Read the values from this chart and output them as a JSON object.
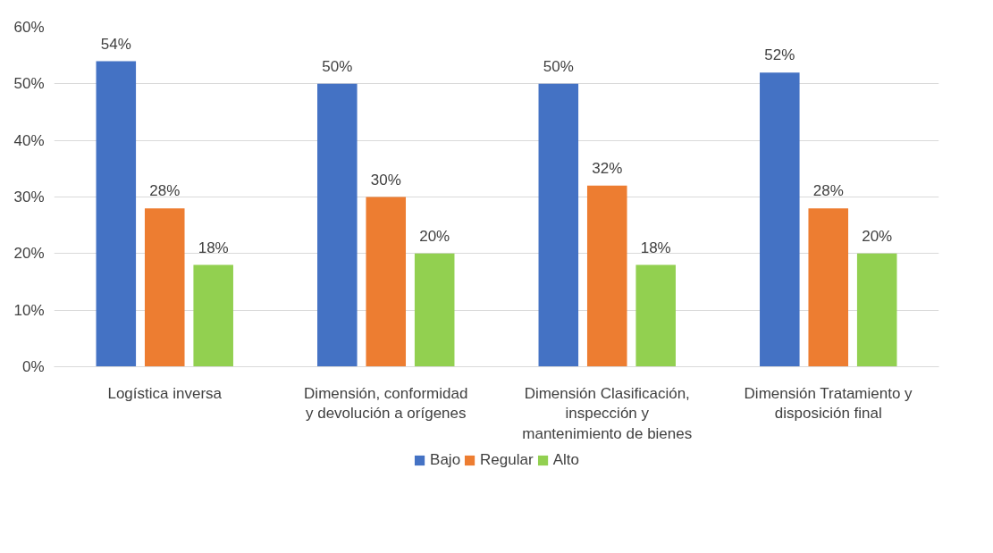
{
  "chart_data": {
    "type": "bar",
    "categories": [
      "Logística inversa",
      "Dimensión, conformidad\ny devolución a orígenes",
      "Dimensión Clasificación,\ninspección y\nmantenimiento de bienes",
      "Dimensión Tratamiento y\ndisposición final"
    ],
    "series": [
      {
        "name": "Bajo",
        "color": "#4472c4",
        "values": [
          54,
          50,
          50,
          52
        ],
        "value_labels": [
          "54%",
          "50%",
          "50%",
          "52%"
        ]
      },
      {
        "name": "Regular",
        "color": "#ed7d31",
        "values": [
          28,
          30,
          32,
          28
        ],
        "value_labels": [
          "28%",
          "30%",
          "32%",
          "28%"
        ]
      },
      {
        "name": "Alto",
        "color": "#92d050",
        "values": [
          18,
          20,
          18,
          20
        ],
        "value_labels": [
          "18%",
          "20%",
          "18%",
          "20%"
        ]
      }
    ],
    "ylim": [
      0,
      60
    ],
    "yticks": [
      {
        "value": 0,
        "label": "0%"
      },
      {
        "value": 10,
        "label": "10%"
      },
      {
        "value": 20,
        "label": "20%"
      },
      {
        "value": 30,
        "label": "30%"
      },
      {
        "value": 40,
        "label": "40%"
      },
      {
        "value": 50,
        "label": "50%"
      },
      {
        "value": 60,
        "label": "60%"
      }
    ],
    "grid": "y",
    "legend": "bottom"
  }
}
